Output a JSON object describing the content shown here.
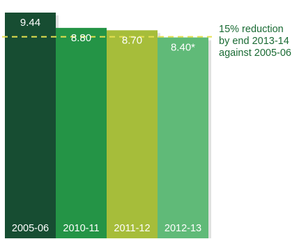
{
  "chart_data": {
    "type": "bar",
    "categories": [
      "2005-06",
      "2010-11",
      "2011-12",
      "2012-13"
    ],
    "values": [
      9.44,
      8.8,
      8.7,
      8.4
    ],
    "value_labels": [
      "9.44",
      "8.80",
      "8.70",
      "8.40*"
    ],
    "title": "",
    "xlabel": "",
    "ylabel": "",
    "ylim": [
      0,
      9.44
    ],
    "grid": false,
    "legend": "none",
    "target_value": 8.4,
    "annotation_lines": [
      "15% reduction",
      "by end 2013-14",
      "against 2005-06"
    ]
  },
  "colors": {
    "bars": [
      "#174d32",
      "#249446",
      "#a6bd3a",
      "#60ba78"
    ],
    "target_line": "#e6e150",
    "annotation_text": "#1a6b34",
    "label_text": "#ffffff",
    "bar_shadow": "#c8c8c8"
  }
}
